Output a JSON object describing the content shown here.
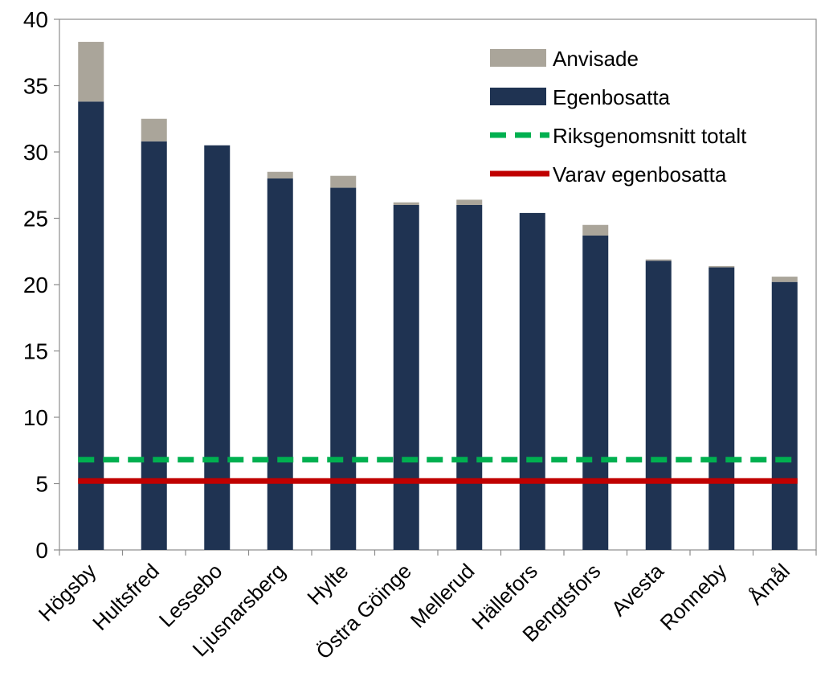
{
  "chart_data": {
    "type": "bar",
    "stacked": true,
    "categories": [
      "Högsby",
      "Hultsfred",
      "Lessebo",
      "Ljusnarsberg",
      "Hylte",
      "Östra Göinge",
      "Mellerud",
      "Hällefors",
      "Bengtsfors",
      "Avesta",
      "Ronneby",
      "Åmål"
    ],
    "series": [
      {
        "name": "Egenbosatta",
        "color": "#1f3352",
        "values": [
          33.8,
          30.8,
          30.5,
          28.0,
          27.3,
          26.0,
          26.0,
          25.4,
          23.7,
          21.8,
          21.3,
          20.2
        ]
      },
      {
        "name": "Anvisade",
        "color": "#aaa59a",
        "values": [
          4.5,
          1.7,
          0.0,
          0.5,
          0.9,
          0.2,
          0.4,
          0.0,
          0.8,
          0.1,
          0.1,
          0.4
        ]
      }
    ],
    "reference_lines": [
      {
        "name": "Riksgenomsnitt totalt",
        "value": 6.8,
        "color": "#00b050",
        "style": "dashed"
      },
      {
        "name": "Varav egenbosatta",
        "value": 5.2,
        "color": "#c00000",
        "style": "solid"
      }
    ],
    "legend": {
      "placement": "top-right",
      "items": [
        {
          "label": "Anvisade",
          "kind": "swatch",
          "color": "#aaa59a"
        },
        {
          "label": "Egenbosatta",
          "kind": "swatch",
          "color": "#1f3352"
        },
        {
          "label": "Riksgenomsnitt totalt",
          "kind": "dashed-line",
          "color": "#00b050"
        },
        {
          "label": "Varav egenbosatta",
          "kind": "solid-line",
          "color": "#c00000"
        }
      ]
    },
    "ylim": [
      0,
      40
    ],
    "yticks": [
      "0",
      "5",
      "10",
      "15",
      "20",
      "25",
      "30",
      "35",
      "40"
    ],
    "grid": false
  }
}
